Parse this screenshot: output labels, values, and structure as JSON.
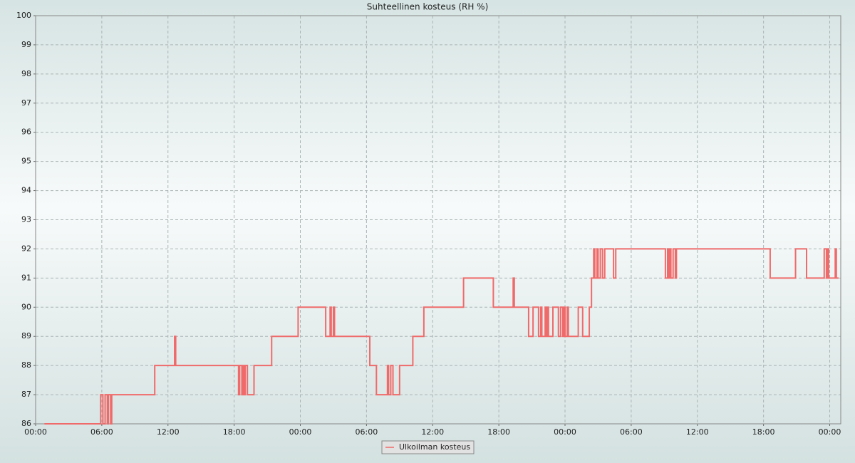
{
  "chart_data": {
    "type": "line",
    "title": "Suhteellinen kosteus (RH %)",
    "x": [
      0.8,
      5.9,
      6.1,
      6.3,
      6.5,
      6.6,
      6.8,
      6.9,
      10.8,
      12.6,
      12.7,
      18.4,
      18.5,
      18.7,
      18.8,
      18.9,
      19.0,
      19.2,
      19.8,
      21.4,
      23.8,
      26.3,
      26.7,
      26.8,
      27.0,
      27.1,
      30.3,
      30.9,
      31.9,
      32.0,
      32.2,
      32.4,
      33.0,
      34.2,
      35.2,
      38.8,
      41.5,
      43.3,
      43.4,
      44.7,
      45.1,
      45.6,
      45.8,
      45.9,
      46.2,
      46.3,
      46.4,
      46.5,
      46.9,
      47.4,
      47.6,
      47.8,
      47.9,
      48.0,
      48.2,
      48.3,
      49.2,
      49.6,
      50.2,
      50.4,
      50.6,
      50.7,
      50.9,
      51.0,
      51.2,
      51.4,
      51.6,
      52.4,
      52.6,
      57.1,
      57.3,
      57.4,
      57.5,
      57.6,
      57.8,
      58.0,
      58.1,
      66.6,
      68.9,
      69.9,
      71.5,
      71.7,
      71.8,
      71.9,
      72.5,
      72.6,
      72.8
    ],
    "series": [
      {
        "name": "Ulkoilman kosteus",
        "color": "#f06a6a",
        "values": [
          86,
          87,
          86,
          87,
          86,
          87,
          86,
          87,
          88,
          89,
          88,
          87,
          88,
          87,
          88,
          87,
          88,
          87,
          88,
          89,
          90,
          89,
          90,
          89,
          90,
          89,
          88,
          87,
          88,
          87,
          88,
          87,
          88,
          89,
          90,
          91,
          90,
          91,
          90,
          89,
          90,
          89,
          90,
          89,
          90,
          89,
          90,
          89,
          90,
          89,
          90,
          89,
          90,
          89,
          90,
          89,
          90,
          89,
          90,
          91,
          92,
          91,
          92,
          91,
          92,
          91,
          92,
          91,
          92,
          91,
          92,
          91,
          92,
          91,
          92,
          91,
          92,
          91,
          92,
          91,
          92,
          91,
          92,
          91,
          92,
          91,
          91
        ]
      }
    ],
    "xlim": [
      0,
      73
    ],
    "xticks": [
      {
        "value": 0,
        "label": "00:00"
      },
      {
        "value": 6,
        "label": "06:00"
      },
      {
        "value": 12,
        "label": "12:00"
      },
      {
        "value": 18,
        "label": "18:00"
      },
      {
        "value": 24,
        "label": "00:00"
      },
      {
        "value": 30,
        "label": "06:00"
      },
      {
        "value": 36,
        "label": "12:00"
      },
      {
        "value": 42,
        "label": "18:00"
      },
      {
        "value": 48,
        "label": "00:00"
      },
      {
        "value": 54,
        "label": "06:00"
      },
      {
        "value": 60,
        "label": "12:00"
      },
      {
        "value": 66,
        "label": "18:00"
      },
      {
        "value": 72,
        "label": "00:00"
      }
    ],
    "ylim": [
      86,
      100
    ],
    "yticks": [
      86,
      87,
      88,
      89,
      90,
      91,
      92,
      93,
      94,
      95,
      96,
      97,
      98,
      99,
      100
    ],
    "grid": true
  }
}
